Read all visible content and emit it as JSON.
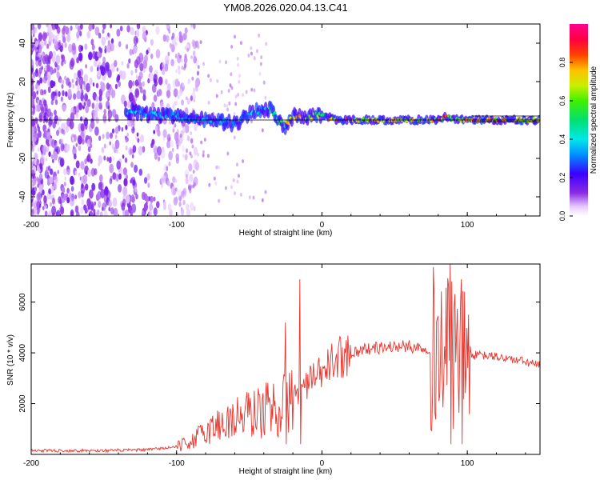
{
  "title": "YM08.2026.020.04.13.C41",
  "colors": {
    "snr_line": "#e8342c",
    "frame": "#000000",
    "center_line": "#000000"
  },
  "chart_data": [
    {
      "type": "heatmap",
      "xlabel": "Height of straight line (km)",
      "ylabel": "Frequency (Hz)",
      "xlim": [
        -200,
        150
      ],
      "ylim": [
        -50,
        50
      ],
      "xticks": [
        -200,
        -100,
        0,
        100
      ],
      "yticks": [
        -40,
        -20,
        0,
        20,
        40
      ],
      "colorbar": {
        "label": "Normalized spectral amplitude",
        "range": [
          0,
          1
        ],
        "ticks": [
          "0.0",
          "0.2",
          "0.4",
          "0.6",
          "0.8"
        ],
        "colormap": "rainbow: white-violet-blue-cyan-green-yellow-orange-red-magenta"
      },
      "description_of_data": "Broadband noise below about -100 km; narrow signal band near 0 Hz from about -135 km to 150 km, amplitude rising from ~0.3 to ~0.8",
      "signal_track": {
        "x": [
          -135,
          -120,
          -100,
          -80,
          -60,
          -50,
          -40,
          -35,
          -30,
          -25,
          -20,
          -10,
          0,
          10,
          20,
          40,
          60,
          80,
          85,
          90,
          95,
          100,
          120,
          150
        ],
        "y_hz": [
          5,
          3,
          2,
          0,
          -2,
          3,
          6,
          5,
          0,
          -3,
          2,
          1,
          3,
          0,
          0,
          0,
          0,
          0,
          2,
          1,
          0,
          0,
          0,
          0
        ],
        "amplitude": [
          0.35,
          0.4,
          0.35,
          0.4,
          0.3,
          0.4,
          0.45,
          0.5,
          0.6,
          0.7,
          0.8,
          0.75,
          0.6,
          0.8,
          0.8,
          0.75,
          0.7,
          0.75,
          0.85,
          0.6,
          0.7,
          0.8,
          0.75,
          0.7
        ]
      }
    },
    {
      "type": "line",
      "xlabel": "Height of straight line (km)",
      "ylabel": "SNR (10 * v/v)",
      "xlim": [
        -200,
        150
      ],
      "ylim": [
        0,
        7500
      ],
      "xticks": [
        -200,
        -100,
        0,
        100
      ],
      "yticks": [
        2000,
        4000,
        6000
      ],
      "series": [
        {
          "name": "SNR",
          "x": [
            -200,
            -150,
            -120,
            -100,
            -90,
            -80,
            -70,
            -60,
            -50,
            -40,
            -35,
            -30,
            -20,
            -10,
            0,
            10,
            20,
            30,
            40,
            50,
            60,
            70,
            80,
            85,
            90,
            95,
            100,
            110,
            120,
            130,
            140,
            150
          ],
          "y": [
            150,
            150,
            180,
            300,
            500,
            900,
            1200,
            1400,
            1600,
            1700,
            1900,
            1800,
            2300,
            2800,
            3200,
            3800,
            4000,
            4150,
            4200,
            4250,
            4250,
            4200,
            4150,
            4000,
            3800,
            3850,
            3900,
            3900,
            3850,
            3750,
            3650,
            3500
          ]
        }
      ],
      "spikes": [
        {
          "x": -15,
          "y": 6900
        },
        {
          "x": 88,
          "y": 7500
        },
        {
          "x": 96,
          "y": 6900
        },
        {
          "x": -25,
          "y": 5200
        }
      ]
    }
  ]
}
